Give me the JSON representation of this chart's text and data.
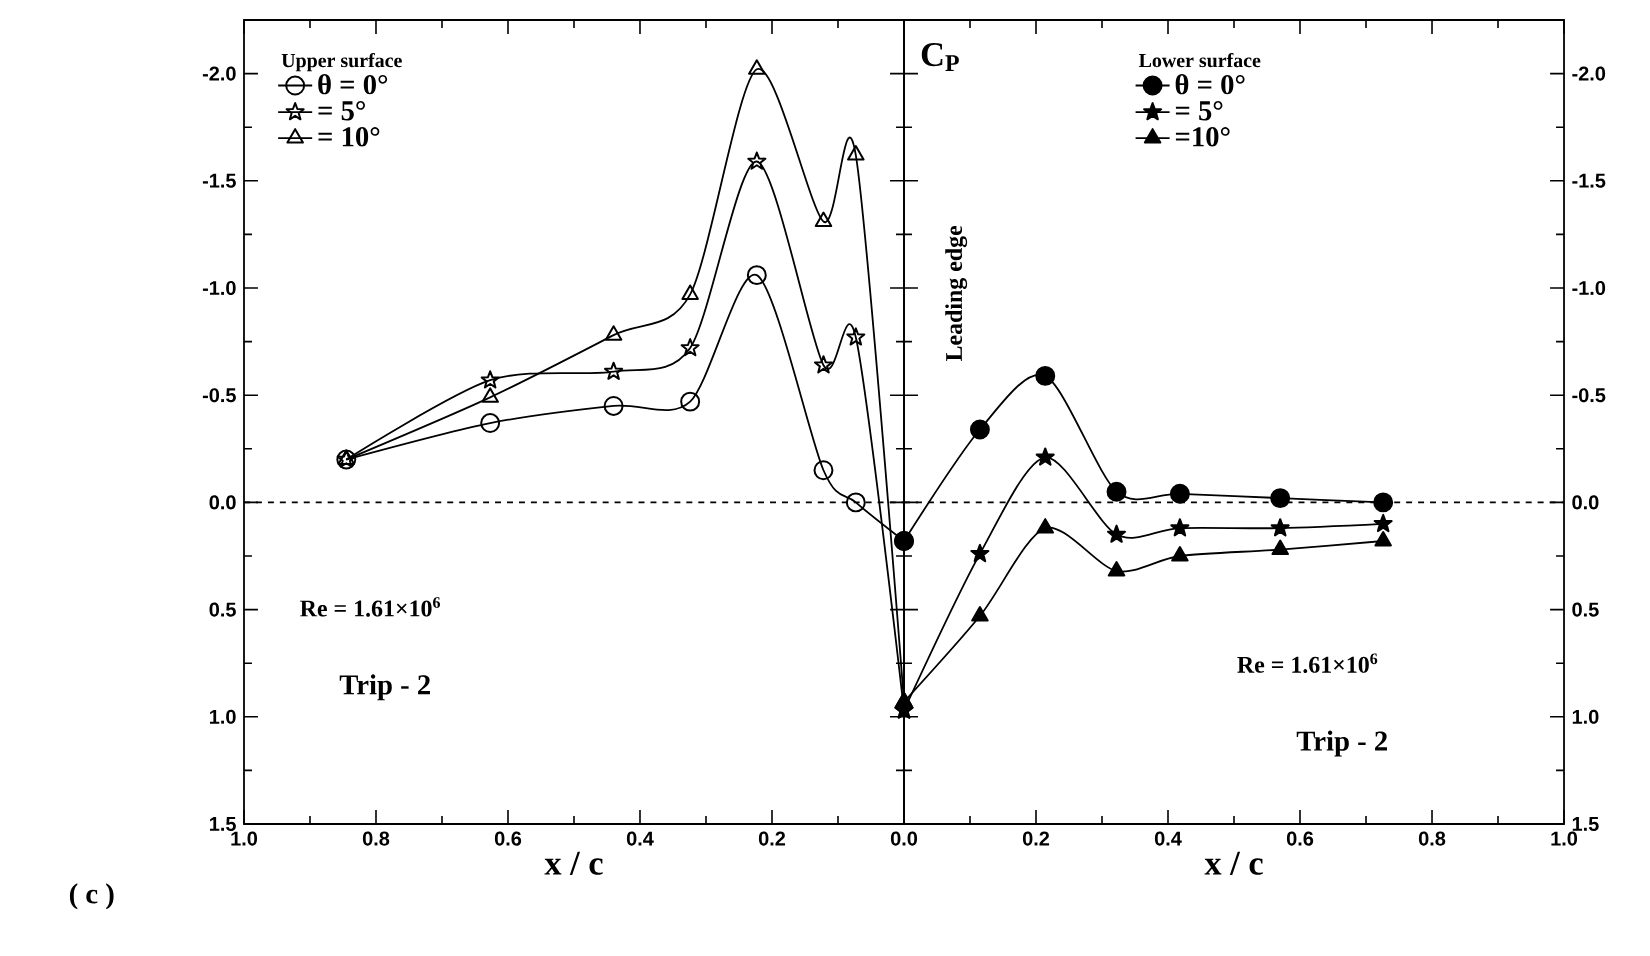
{
  "chart_data": [
    {
      "type": "line",
      "legend_title": "Upper surface",
      "legend": "top left",
      "xlabel": "x / c",
      "xlim": [
        1.0,
        0.0
      ],
      "xticks": [
        {
          "value": 1.0,
          "label": "1.0"
        },
        {
          "value": 0.8,
          "label": "0.8"
        },
        {
          "value": 0.6,
          "label": "0.6"
        },
        {
          "value": 0.4,
          "label": "0.4"
        },
        {
          "value": 0.2,
          "label": "0.2"
        },
        {
          "value": 0.0,
          "label": null
        }
      ],
      "ylim": [
        1.5,
        -2.25
      ],
      "yticks": [
        {
          "value": -2.0,
          "label": "-2.0"
        },
        {
          "value": -1.5,
          "label": "-1.5"
        },
        {
          "value": -1.0,
          "label": "-1.0"
        },
        {
          "value": -0.5,
          "label": "-0.5"
        },
        {
          "value": 0.0,
          "label": "0.0"
        },
        {
          "value": 0.5,
          "label": "0.5"
        },
        {
          "value": 1.0,
          "label": "1.0"
        },
        {
          "value": 1.5,
          "label": "1.5"
        }
      ],
      "ref_lines": [
        {
          "axis": "y",
          "value": 0,
          "label": null,
          "line_style": "dashed"
        }
      ],
      "annotations": [
        "Re = 1.61×10$^{6}$",
        "Trip - 2",
        "( c )"
      ],
      "series": [
        {
          "name": "θ = 0°",
          "color": "#000000",
          "marker": "circle",
          "x": [
            0.845,
            0.627,
            0.44,
            0.324,
            0.223,
            0.122,
            0.073,
            0.0
          ],
          "values": [
            -0.2,
            -0.37,
            -0.45,
            -0.47,
            -1.06,
            -0.15,
            0.0,
            0.18
          ]
        },
        {
          "name": "= 5°",
          "color": "#000000",
          "marker": "star",
          "x": [
            0.845,
            0.627,
            0.44,
            0.324,
            0.223,
            0.122,
            0.073,
            0.0
          ],
          "values": [
            -0.2,
            -0.57,
            -0.61,
            -0.72,
            -1.59,
            -0.64,
            -0.77,
            0.97
          ]
        },
        {
          "name": "= 10°",
          "color": "#000000",
          "marker": "triangle",
          "x": [
            0.845,
            0.627,
            0.44,
            0.324,
            0.223,
            0.122,
            0.073,
            0.0
          ],
          "values": [
            -0.2,
            -0.49,
            -0.78,
            -0.97,
            -2.02,
            -1.31,
            -1.62,
            0.93
          ]
        }
      ]
    },
    {
      "type": "line",
      "legend_title": "Lower surface",
      "legend": "top",
      "xlabel": "x / c",
      "xlim": [
        0.0,
        1.0
      ],
      "xticks": [
        {
          "value": 0.0,
          "label": "0.0"
        },
        {
          "value": 0.2,
          "label": "0.2"
        },
        {
          "value": 0.4,
          "label": "0.4"
        },
        {
          "value": 0.6,
          "label": "0.6"
        },
        {
          "value": 0.8,
          "label": "0.8"
        },
        {
          "value": 1.0,
          "label": "1.0"
        }
      ],
      "ylim": [
        1.5,
        -2.25
      ],
      "yticks": [
        {
          "value": -2.0,
          "label": "-2.0"
        },
        {
          "value": -1.5,
          "label": "-1.5"
        },
        {
          "value": -1.0,
          "label": "-1.0"
        },
        {
          "value": -0.5,
          "label": "-0.5"
        },
        {
          "value": 0.0,
          "label": "0.0"
        },
        {
          "value": 0.5,
          "label": "0.5"
        },
        {
          "value": 1.0,
          "label": "1.0"
        },
        {
          "value": 1.5,
          "label": "1.5"
        }
      ],
      "ref_lines": [
        {
          "axis": "y",
          "value": 0,
          "label": null,
          "line_style": "dashed"
        }
      ],
      "annotations": [
        "C$_{P}$",
        "Leading edge",
        "Re = 1.61×10$^{6}$",
        "Trip - 2"
      ],
      "series": [
        {
          "name": "θ = 0°",
          "color": "#000000",
          "marker": "circle",
          "x": [
            0.0,
            0.115,
            0.214,
            0.322,
            0.418,
            0.57,
            0.726
          ],
          "values": [
            0.18,
            -0.34,
            -0.59,
            -0.05,
            -0.04,
            -0.02,
            0.0
          ]
        },
        {
          "name": "= 5°",
          "color": "#000000",
          "marker": "star",
          "x": [
            0.0,
            0.115,
            0.214,
            0.322,
            0.418,
            0.57,
            0.726
          ],
          "values": [
            0.97,
            0.24,
            -0.21,
            0.15,
            0.12,
            0.12,
            0.1
          ]
        },
        {
          "name": "=10°",
          "color": "#000000",
          "marker": "triangle",
          "x": [
            0.0,
            0.115,
            0.214,
            0.322,
            0.418,
            0.57,
            0.726
          ],
          "values": [
            0.93,
            0.53,
            0.12,
            0.32,
            0.25,
            0.22,
            0.18
          ]
        }
      ]
    }
  ]
}
